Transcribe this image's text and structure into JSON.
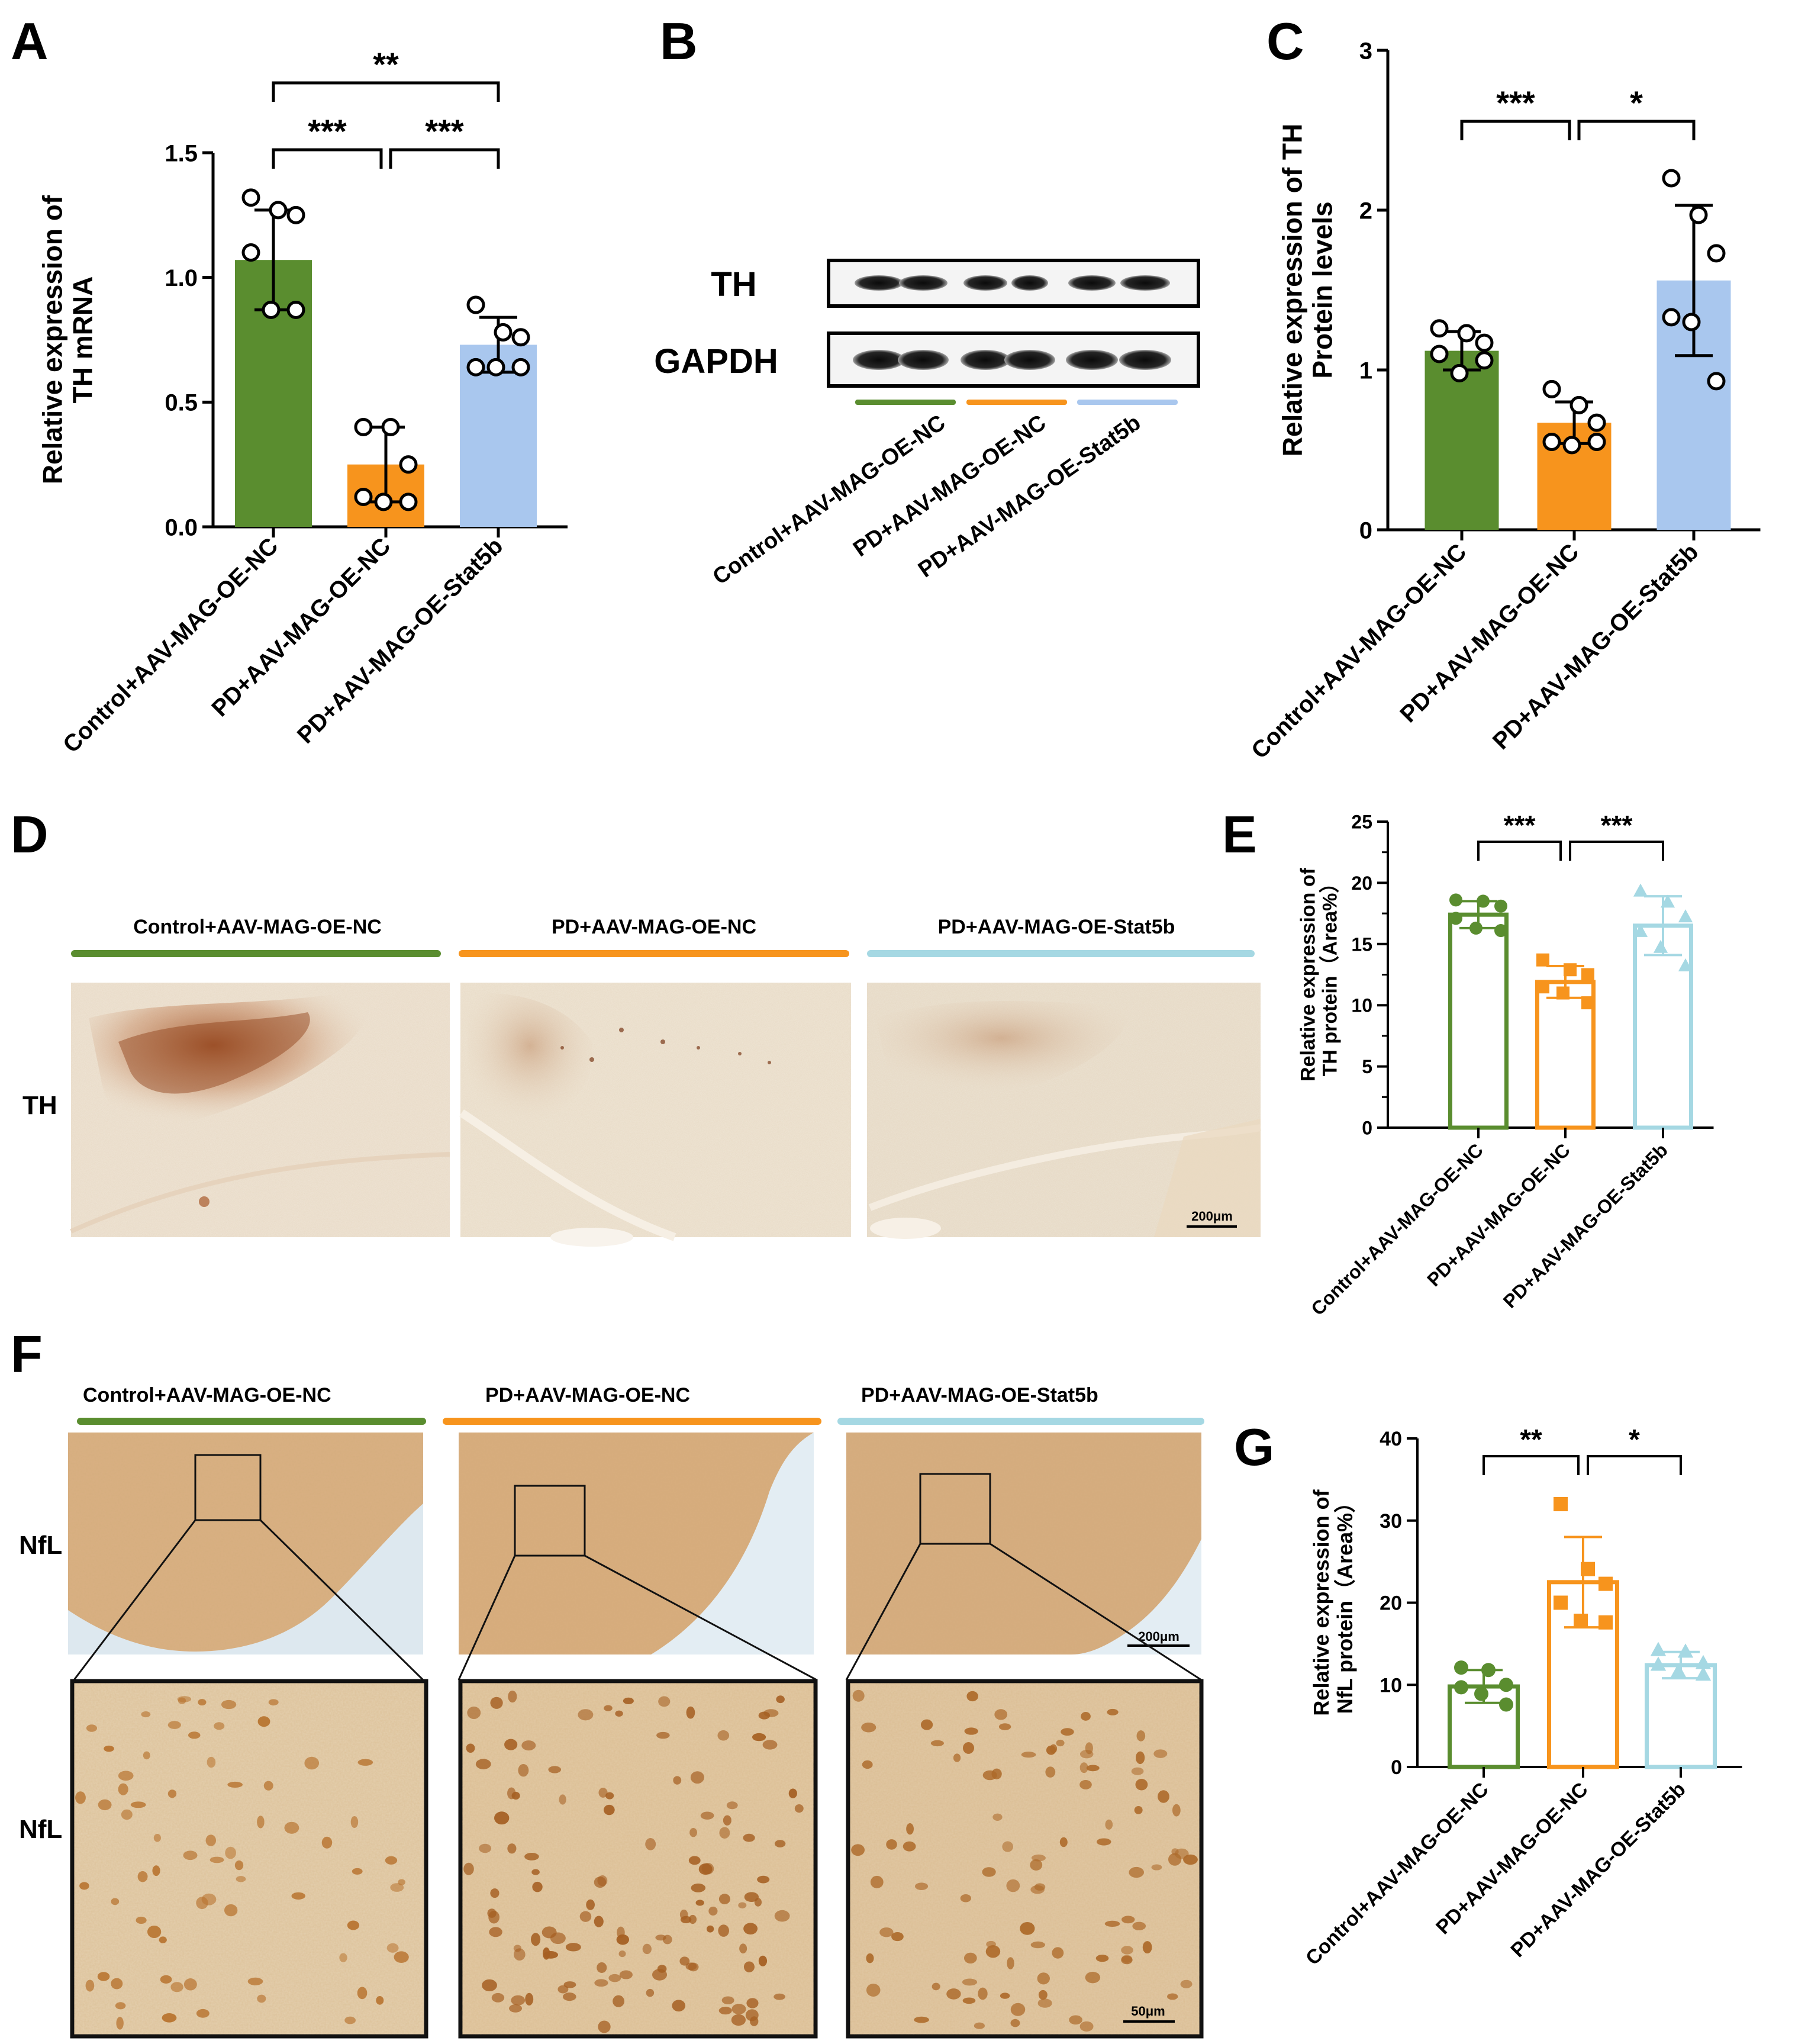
{
  "panels": {
    "A": {
      "label": "A"
    },
    "B": {
      "label": "B",
      "row_labels": [
        "TH",
        "GAPDH"
      ],
      "lane_groups": [
        "Control+AAV-MAG-OE-NC",
        "PD+AAV-MAG-OE-NC",
        "PD+AAV-MAG-OE-Stat5b"
      ]
    },
    "C": {
      "label": "C"
    },
    "D": {
      "label": "D",
      "row_label": "TH",
      "scale_bar": "200μm",
      "columns": [
        "Control+AAV-MAG-OE-NC",
        "PD+AAV-MAG-OE-NC",
        "PD+AAV-MAG-OE-Stat5b"
      ]
    },
    "E": {
      "label": "E"
    },
    "F": {
      "label": "F",
      "row_labels": [
        "NfL",
        "NfL"
      ],
      "scale_bar_low": "200μm",
      "scale_bar_high": "50μm",
      "columns": [
        "Control+AAV-MAG-OE-NC",
        "PD+AAV-MAG-OE-NC",
        "PD+AAV-MAG-OE-Stat5b"
      ]
    },
    "G": {
      "label": "G"
    }
  },
  "colors": {
    "control": "#5a8d2f",
    "pd": "#f7941d",
    "stat5b_light_blue": "#a9c7ee",
    "stat5b_cyan": "#a5d8e3",
    "band": "#151515"
  },
  "chart_data": [
    {
      "id": "A",
      "type": "bar",
      "categories": [
        "Control+AAV-MAG-OE-NC",
        "PD+AAV-MAG-OE-NC",
        "PD+AAV-MAG-OE-Stat5b"
      ],
      "values": [
        1.07,
        0.25,
        0.73
      ],
      "errors": [
        0.2,
        0.15,
        0.11
      ],
      "points": [
        [
          1.32,
          1.27,
          1.25,
          1.1,
          0.87,
          0.87
        ],
        [
          0.4,
          0.4,
          0.25,
          0.12,
          0.1,
          0.1
        ],
        [
          0.89,
          0.78,
          0.76,
          0.64,
          0.64,
          0.64
        ]
      ],
      "ylabel": "Relative expression of\nTH  mRNA",
      "ylim": [
        0,
        1.5
      ],
      "yticks": [
        "0.0",
        "0.5",
        "1.0",
        "1.5"
      ],
      "significance": [
        {
          "from": 0,
          "to": 1,
          "label": "***"
        },
        {
          "from": 1,
          "to": 2,
          "label": "***"
        },
        {
          "from": 0,
          "to": 2,
          "label": "**"
        }
      ]
    },
    {
      "id": "C",
      "type": "bar",
      "categories": [
        "Control+AAV-MAG-OE-NC",
        "PD+AAV-MAG-OE-NC",
        "PD+AAV-MAG-OE-Stat5b"
      ],
      "values": [
        1.12,
        0.67,
        1.56
      ],
      "errors": [
        0.12,
        0.13,
        0.47
      ],
      "points": [
        [
          1.26,
          1.23,
          1.17,
          1.1,
          0.98,
          1.06
        ],
        [
          0.88,
          0.78,
          0.67,
          0.55,
          0.53,
          0.55
        ],
        [
          2.2,
          1.97,
          1.73,
          1.33,
          1.3,
          0.93
        ]
      ],
      "ylabel": "Relative expression of TH\nProtein levels",
      "ylim": [
        0,
        3
      ],
      "yticks": [
        "0",
        "1",
        "2",
        "3"
      ],
      "significance": [
        {
          "from": 0,
          "to": 1,
          "label": "***"
        },
        {
          "from": 1,
          "to": 2,
          "label": "*"
        }
      ]
    },
    {
      "id": "E",
      "type": "bar",
      "categories": [
        "Control+AAV-MAG-OE-NC",
        "PD+AAV-MAG-OE-NC",
        "PD+AAV-MAG-OE-Stat5b"
      ],
      "values": [
        17.4,
        11.9,
        16.5
      ],
      "errors": [
        1.1,
        1.3,
        2.4
      ],
      "points": [
        [
          18.6,
          18.5,
          18.1,
          17.1,
          16.3,
          16.1
        ],
        [
          13.7,
          12.9,
          12.5,
          11.5,
          11.0,
          10.2
        ],
        [
          19.3,
          18.4,
          17.2,
          16.0,
          14.7,
          13.2
        ]
      ],
      "ylabel": "Relative expression of\nTH protein（Area%）",
      "ylim": [
        0,
        25
      ],
      "yticks": [
        "0",
        "5",
        "10",
        "15",
        "20",
        "25"
      ],
      "significance": [
        {
          "from": 0,
          "to": 1,
          "label": "***"
        },
        {
          "from": 1,
          "to": 2,
          "label": "***"
        }
      ]
    },
    {
      "id": "G",
      "type": "bar",
      "categories": [
        "Control+AAV-MAG-OE-NC",
        "PD+AAV-MAG-OE-NC",
        "PD+AAV-MAG-OE-Stat5b"
      ],
      "values": [
        9.8,
        22.5,
        12.4
      ],
      "errors": [
        2.0,
        5.5,
        1.6
      ],
      "points": [
        [
          12.1,
          11.8,
          10.0,
          9.7,
          8.9,
          7.6
        ],
        [
          32.0,
          24.1,
          22.3,
          20.0,
          17.8,
          17.6
        ],
        [
          14.2,
          14.0,
          12.6,
          12.4,
          11.6,
          11.2
        ]
      ],
      "ylabel": "Relative expression of\nNfL protein（Area%）",
      "ylim": [
        0,
        40
      ],
      "yticks": [
        "0",
        "10",
        "20",
        "30",
        "40"
      ],
      "significance": [
        {
          "from": 0,
          "to": 1,
          "label": "**"
        },
        {
          "from": 1,
          "to": 2,
          "label": "*"
        }
      ]
    }
  ]
}
